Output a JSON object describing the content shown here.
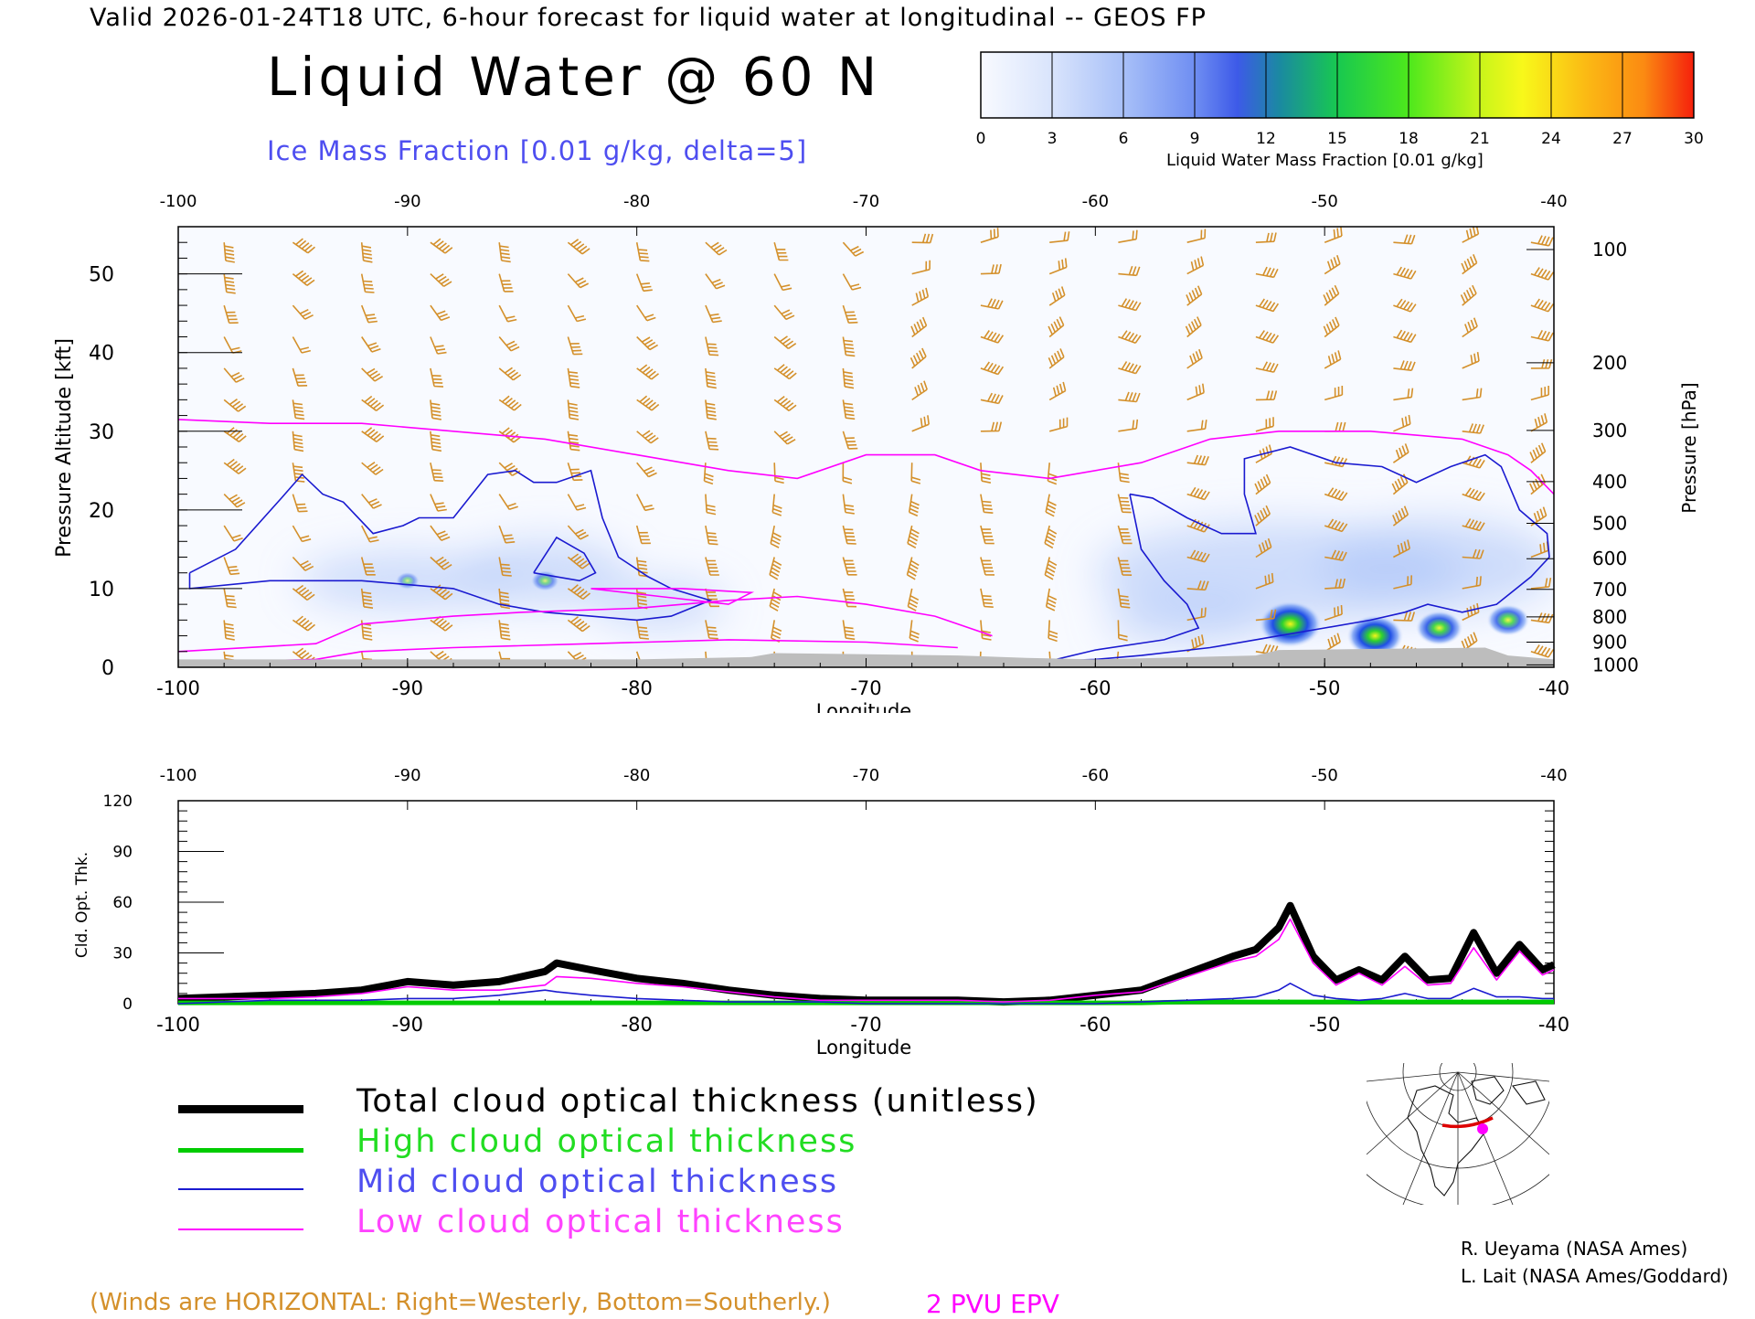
{
  "header": {
    "line": "Valid 2026-01-24T18 UTC, 6-hour forecast for liquid water at longitudinal -- GEOS FP",
    "title": "Liquid Water @ 60 N",
    "subtitle": "Ice Mass Fraction [0.01 g/kg, delta=5]"
  },
  "colors": {
    "header": "#000000",
    "subtitle": "#4e4ef0",
    "wind_barbs": "#d4902b",
    "epv": "#ff00ff",
    "ice_contour": "#1a1ad0",
    "terrain": "#bdbdbd",
    "total_line": "#000000",
    "high_line": "#00cc00",
    "mid_line": "#1a1ad0",
    "low_line": "#ff00ff"
  },
  "colorbar": {
    "ticks": [
      "0",
      "3",
      "6",
      "9",
      "12",
      "15",
      "18",
      "21",
      "24",
      "27",
      "30"
    ],
    "label": "Liquid Water Mass Fraction [0.01 g/kg]"
  },
  "top_panel": {
    "x_ticks": [
      "-100",
      "-90",
      "-80",
      "-70",
      "-60",
      "-50",
      "-40"
    ],
    "y_ticks_left": [
      "0",
      "10",
      "20",
      "30",
      "40",
      "50"
    ],
    "y_ticks_right": [
      "100",
      "200",
      "300",
      "400",
      "500",
      "600",
      "700",
      "800",
      "900",
      "1000"
    ],
    "ylabel_left": "Pressure Altitude [kft]",
    "ylabel_right": "Pressure [hPa]",
    "xlabel": "Longitude"
  },
  "bottom_panel": {
    "x_ticks": [
      "-100",
      "-90",
      "-80",
      "-70",
      "-60",
      "-50",
      "-40"
    ],
    "y_ticks": [
      "0",
      "30",
      "60",
      "90",
      "120"
    ],
    "ylabel": "Cld. Opt. Thk.",
    "xlabel": "Longitude"
  },
  "legend": {
    "total": "Total cloud optical thickness (unitless)",
    "high": "High cloud optical thickness",
    "mid": "Mid cloud optical thickness",
    "low": "Low cloud optical thickness"
  },
  "notes": {
    "winds": "(Winds are HORIZONTAL: Right=Westerly, Bottom=Southerly.)",
    "epv": "2 PVU EPV"
  },
  "credits": {
    "line1": "R. Ueyama (NASA Ames)",
    "line2": "L. Lait (NASA Ames/Goddard)"
  },
  "chart_data": [
    {
      "type": "heatmap",
      "title": "Liquid Water @ 60 N",
      "subtitle": "Ice Mass Fraction [0.01 g/kg, delta=5]",
      "xlabel": "Longitude",
      "ylabel": "Pressure Altitude [kft]",
      "ylabel_right": "Pressure [hPa]",
      "xlim": [
        -100,
        -40
      ],
      "ylim": [
        0,
        56
      ],
      "color_scale": [
        0,
        30
      ],
      "liquid_water_maxima": [
        {
          "lon": -51.5,
          "alt_kft": 5.5,
          "value": 20
        },
        {
          "lon": -47.8,
          "alt_kft": 4,
          "value": 17
        },
        {
          "lon": -45,
          "alt_kft": 5,
          "value": 13
        },
        {
          "lon": -42,
          "alt_kft": 6,
          "value": 11
        },
        {
          "lon": -84,
          "alt_kft": 11,
          "value": 5
        },
        {
          "lon": -90,
          "alt_kft": 11,
          "value": 3
        }
      ],
      "ice_contour_5": [
        [
          [
            -99.5,
            12
          ],
          [
            -97.5,
            15
          ],
          [
            -95.5,
            21.5
          ],
          [
            -94.6,
            24.5
          ],
          [
            -93.7,
            22
          ],
          [
            -92.8,
            21
          ],
          [
            -91.5,
            17
          ],
          [
            -90.2,
            18
          ],
          [
            -89.5,
            19
          ],
          [
            -88,
            19
          ],
          [
            -86.5,
            24.5
          ],
          [
            -85.3,
            25
          ],
          [
            -84.5,
            23.5
          ],
          [
            -83.5,
            23.5
          ],
          [
            -82,
            25
          ],
          [
            -81.5,
            19
          ],
          [
            -80.8,
            14
          ],
          [
            -79.5,
            11.5
          ],
          [
            -78.5,
            10
          ],
          [
            -76.8,
            8.5
          ],
          [
            -78.5,
            6.5
          ],
          [
            -80,
            6
          ],
          [
            -82,
            6.5
          ],
          [
            -84,
            7
          ],
          [
            -86,
            8
          ],
          [
            -88,
            10
          ],
          [
            -90,
            10.5
          ],
          [
            -92,
            11
          ],
          [
            -94,
            11
          ],
          [
            -96,
            11
          ],
          [
            -99.5,
            10
          ],
          [
            -99.5,
            12
          ]
        ],
        [
          [
            -84.5,
            12
          ],
          [
            -83.5,
            16.5
          ],
          [
            -82.3,
            14.5
          ],
          [
            -81.8,
            12
          ],
          [
            -82.5,
            11
          ],
          [
            -84.5,
            12
          ]
        ],
        [
          [
            -58.5,
            22
          ],
          [
            -57.5,
            21.5
          ],
          [
            -56,
            19
          ],
          [
            -54.5,
            17
          ],
          [
            -53,
            17
          ],
          [
            -53.5,
            22
          ],
          [
            -53.5,
            26.5
          ],
          [
            -51.5,
            28
          ],
          [
            -49.5,
            26
          ],
          [
            -47.5,
            25.5
          ],
          [
            -46,
            23.5
          ],
          [
            -44.5,
            25.5
          ],
          [
            -43,
            27
          ],
          [
            -42.3,
            25.5
          ],
          [
            -41.5,
            20
          ],
          [
            -40.3,
            17
          ],
          [
            -40.2,
            14
          ],
          [
            -41,
            11.5
          ],
          [
            -42.5,
            8
          ],
          [
            -44,
            7
          ],
          [
            -45.5,
            8
          ],
          [
            -46.5,
            7
          ],
          [
            -48,
            6
          ],
          [
            -50,
            5
          ],
          [
            -52,
            4
          ],
          [
            -55,
            2.5
          ],
          [
            -58,
            1.5
          ],
          [
            -60,
            1
          ],
          [
            -62,
            0.8
          ],
          [
            -60,
            2.2
          ],
          [
            -57,
            3.5
          ],
          [
            -55.5,
            5
          ],
          [
            -56,
            8
          ],
          [
            -57,
            11
          ],
          [
            -58,
            15
          ],
          [
            -58.5,
            22
          ]
        ]
      ],
      "epv_2pvu": [
        [
          [
            -100,
            31.5
          ],
          [
            -96,
            31
          ],
          [
            -92,
            31
          ],
          [
            -88,
            30
          ],
          [
            -84,
            29
          ],
          [
            -80,
            27
          ],
          [
            -76,
            25
          ],
          [
            -73,
            24
          ],
          [
            -70,
            27
          ],
          [
            -67,
            27
          ],
          [
            -65,
            25
          ],
          [
            -62,
            24
          ],
          [
            -58,
            26
          ],
          [
            -55,
            29
          ],
          [
            -52,
            30
          ],
          [
            -48,
            30
          ],
          [
            -44,
            29
          ],
          [
            -42,
            27
          ],
          [
            -41,
            25
          ],
          [
            -40,
            22
          ]
        ],
        [
          [
            -100,
            2
          ],
          [
            -94,
            3
          ],
          [
            -92,
            5.5
          ],
          [
            -88,
            6.5
          ],
          [
            -85,
            7
          ],
          [
            -80,
            7.5
          ],
          [
            -76,
            8.5
          ],
          [
            -73,
            9
          ],
          [
            -70,
            8
          ],
          [
            -67,
            6.5
          ],
          [
            -64.5,
            4
          ]
        ],
        [
          [
            -100,
            0.5
          ],
          [
            -94,
            1
          ],
          [
            -92,
            2
          ],
          [
            -88,
            2.5
          ],
          [
            -82,
            3
          ],
          [
            -76,
            3.5
          ],
          [
            -70,
            3.2
          ],
          [
            -66,
            2.5
          ]
        ],
        [
          [
            -82,
            10
          ],
          [
            -79,
            9
          ],
          [
            -76,
            8
          ],
          [
            -75,
            9.5
          ],
          [
            -78,
            10
          ],
          [
            -82,
            10
          ]
        ]
      ]
    },
    {
      "type": "line",
      "xlabel": "Longitude",
      "ylabel": "Cld. Opt. Thk.",
      "xlim": [
        -100,
        -40
      ],
      "ylim": [
        0,
        120
      ],
      "x": [
        -100,
        -98,
        -96,
        -94,
        -92,
        -90,
        -88,
        -86,
        -84,
        -83.5,
        -82,
        -80,
        -78,
        -76,
        -74,
        -72,
        -70,
        -68,
        -66,
        -64,
        -62,
        -60,
        -58,
        -56,
        -54,
        -53,
        -52,
        -51.5,
        -50.5,
        -49.5,
        -48.5,
        -47.5,
        -46.5,
        -45.5,
        -44.5,
        -43.5,
        -42.5,
        -41.5,
        -40.5,
        -40
      ],
      "series": [
        {
          "name": "Total cloud optical thickness (unitless)",
          "values": [
            3,
            4,
            5,
            6,
            8,
            13,
            11,
            13,
            19,
            24,
            20,
            15,
            12,
            8,
            5,
            3,
            2,
            2,
            2,
            1,
            2,
            5,
            8,
            18,
            28,
            32,
            45,
            58,
            28,
            14,
            20,
            14,
            28,
            14,
            15,
            42,
            18,
            35,
            20,
            23
          ]
        },
        {
          "name": "High cloud optical thickness",
          "values": [
            0.5,
            0.5,
            0.5,
            0.5,
            0.5,
            0.5,
            0.5,
            0.5,
            0.5,
            0.5,
            0.5,
            0.5,
            0.5,
            0.5,
            0.5,
            0.5,
            0.5,
            0.5,
            0.5,
            0.5,
            0.5,
            0.5,
            0.5,
            1,
            1,
            1,
            1,
            1,
            1,
            1,
            1,
            1,
            1,
            1,
            1,
            1,
            1,
            1,
            1,
            1
          ]
        },
        {
          "name": "Mid cloud optical thickness",
          "values": [
            0,
            1,
            2,
            2,
            2,
            3,
            3,
            5,
            8,
            7,
            5,
            3,
            2,
            1,
            1,
            1,
            0,
            0,
            0,
            0,
            0,
            0,
            1,
            2,
            3,
            4,
            8,
            12,
            5,
            3,
            2,
            3,
            6,
            3,
            3,
            9,
            4,
            4,
            3,
            3
          ]
        },
        {
          "name": "Low cloud optical thickness",
          "values": [
            3,
            3,
            3,
            4,
            6,
            10,
            8,
            8,
            11,
            16,
            15,
            12,
            10,
            7,
            4,
            2,
            2,
            2,
            2,
            1,
            2,
            5,
            7,
            16,
            25,
            28,
            38,
            50,
            24,
            11,
            18,
            11,
            22,
            11,
            12,
            33,
            14,
            31,
            17,
            20
          ]
        }
      ]
    }
  ]
}
